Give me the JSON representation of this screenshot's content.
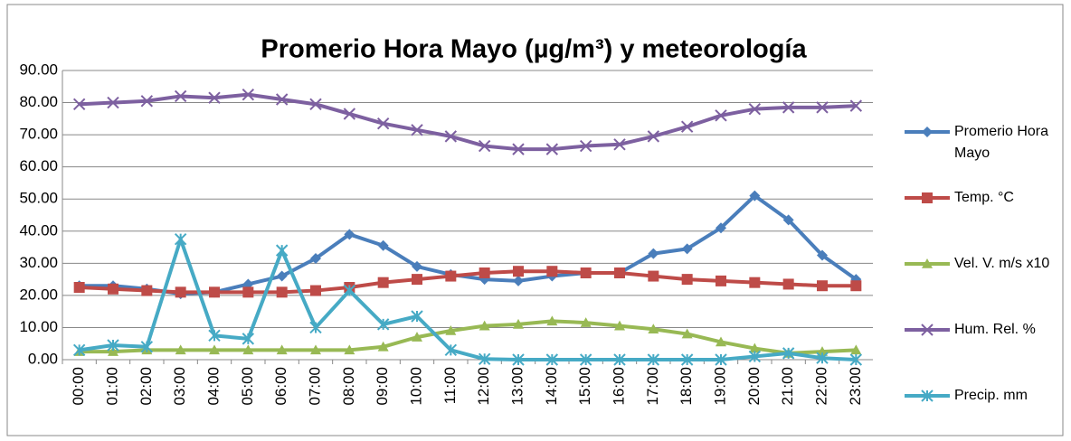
{
  "chart_data": {
    "type": "line",
    "title": "Promerio Hora Mayo (µg/m³) y meteorología",
    "categories": [
      "00:00",
      "01:00",
      "02:00",
      "03:00",
      "04:00",
      "05:00",
      "06:00",
      "07:00",
      "08:00",
      "09:00",
      "10:00",
      "11:00",
      "12:00",
      "13:00",
      "14:00",
      "15:00",
      "16:00",
      "17:00",
      "18:00",
      "19:00",
      "20:00",
      "21:00",
      "22:00",
      "23:00"
    ],
    "series": [
      {
        "name": "Promerio Hora Mayo",
        "color": "#4a7ebb",
        "marker": "diamond",
        "values": [
          23,
          23,
          22,
          20.5,
          21,
          23.5,
          26,
          31.5,
          39,
          35.5,
          29,
          26.5,
          25,
          24.5,
          26,
          27,
          27,
          33,
          34.5,
          41,
          51,
          43.5,
          32.5,
          25
        ]
      },
      {
        "name": "Temp. °C",
        "color": "#be4b48",
        "marker": "square",
        "values": [
          22.5,
          22,
          21.5,
          21,
          21,
          21,
          21,
          21.5,
          22.5,
          24,
          25,
          26,
          27,
          27.5,
          27.5,
          27,
          27,
          26,
          25,
          24.5,
          24,
          23.5,
          23,
          23
        ]
      },
      {
        "name": "Vel. V. m/s x10",
        "color": "#98b954",
        "marker": "triangle",
        "values": [
          2.5,
          2.5,
          3,
          3,
          3,
          3,
          3,
          3,
          3,
          4,
          7,
          9,
          10.5,
          11,
          12,
          11.5,
          10.5,
          9.5,
          8,
          5.5,
          3.5,
          2,
          2.5,
          3
        ]
      },
      {
        "name": "Hum. Rel. %",
        "color": "#7d60a0",
        "marker": "x",
        "values": [
          79.5,
          80,
          80.5,
          82,
          81.5,
          82.5,
          81,
          79.5,
          76.5,
          73.5,
          71.5,
          69.5,
          66.5,
          65.5,
          65.5,
          66.5,
          67,
          69.5,
          72.5,
          76,
          78,
          78.5,
          78.5,
          79
        ]
      },
      {
        "name": "Precip. mm",
        "color": "#46aac5",
        "marker": "star",
        "values": [
          3,
          4.5,
          4,
          37.5,
          7.5,
          6.5,
          34,
          10,
          21.5,
          11,
          13.5,
          3,
          0.2,
          0,
          0,
          0,
          0,
          0,
          0,
          0,
          1,
          2,
          0.5,
          0
        ]
      }
    ],
    "ylim": [
      0,
      90
    ],
    "yticks": [
      {
        "value": 0,
        "label": "0.00"
      },
      {
        "value": 10,
        "label": "10.00"
      },
      {
        "value": 20,
        "label": "20.00"
      },
      {
        "value": 30,
        "label": "30.00"
      },
      {
        "value": 40,
        "label": "40.00"
      },
      {
        "value": 50,
        "label": "50.00"
      },
      {
        "value": 60,
        "label": "60.00"
      },
      {
        "value": 70,
        "label": "70.00"
      },
      {
        "value": 80,
        "label": "80.00"
      },
      {
        "value": 90,
        "label": "90.00"
      }
    ],
    "grid": true,
    "legend": "right"
  }
}
